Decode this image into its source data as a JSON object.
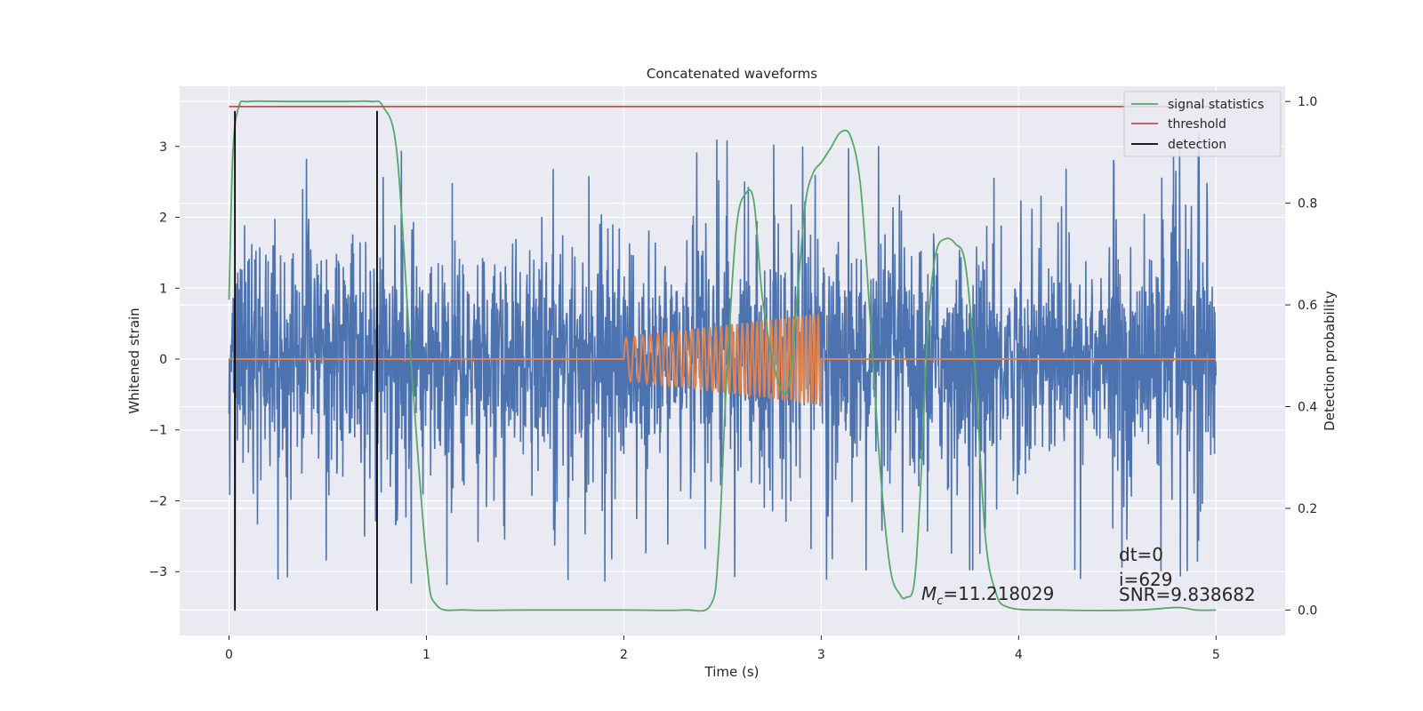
{
  "chart_data": {
    "type": "line",
    "title": "Concatenated waveforms",
    "xlabel": "Time (s)",
    "ylabel": "Whitened strain",
    "y2label": "Detection probability",
    "xlim": [
      -0.25,
      5.35
    ],
    "ylim": [
      -3.9,
      3.85
    ],
    "y2lim": [
      -0.05,
      1.03
    ],
    "xticks": [
      0,
      1,
      2,
      3,
      4,
      5
    ],
    "yticks": [
      -3,
      -2,
      -1,
      0,
      1,
      2,
      3
    ],
    "y2ticks": [
      0.0,
      0.2,
      0.4,
      0.6,
      0.8,
      1.0
    ],
    "grid": true,
    "background": "#eaeaf2",
    "legend_position": "top-right",
    "legend": [
      {
        "label": "signal statistics",
        "color": "#55a868"
      },
      {
        "label": "threshold",
        "color": "#c44e52"
      },
      {
        "label": "detection",
        "color": "#000000"
      }
    ],
    "series": [
      {
        "name": "whitened noise",
        "color": "#4c72b0",
        "axis": "left",
        "x_start": 0,
        "x_end": 5,
        "typical_amplitude": 0.75,
        "spike_range": [
          -3.55,
          3.5
        ]
      },
      {
        "name": "injected chirp",
        "color": "#dd8452",
        "axis": "left",
        "x_start": 0,
        "x_end": 5,
        "chirp_start": 2.0,
        "chirp_end": 3.0,
        "amplitude_start": 0.3,
        "amplitude_end": 0.65
      },
      {
        "name": "signal statistics",
        "color": "#55a868",
        "axis": "right",
        "x": [
          0.0,
          0.02,
          0.05,
          0.1,
          0.3,
          0.6,
          0.72,
          0.78,
          0.85,
          0.92,
          1.0,
          1.05,
          1.2,
          1.5,
          2.0,
          2.3,
          2.44,
          2.48,
          2.52,
          2.57,
          2.62,
          2.66,
          2.7,
          2.75,
          2.8,
          2.84,
          2.88,
          2.92,
          2.96,
          3.0,
          3.05,
          3.1,
          3.15,
          3.2,
          3.25,
          3.3,
          3.35,
          3.4,
          3.43,
          3.47,
          3.5,
          3.54,
          3.58,
          3.63,
          3.68,
          3.73,
          3.78,
          3.83,
          3.88,
          3.95,
          4.2,
          4.6,
          4.8,
          4.9,
          5.0
        ],
        "y": [
          0.61,
          0.9,
          0.99,
          1.0,
          1.0,
          1.0,
          1.0,
          0.99,
          0.9,
          0.5,
          0.1,
          0.01,
          0.0,
          0.0,
          0.0,
          0.0,
          0.01,
          0.12,
          0.45,
          0.75,
          0.82,
          0.8,
          0.62,
          0.5,
          0.43,
          0.45,
          0.62,
          0.8,
          0.86,
          0.88,
          0.91,
          0.94,
          0.93,
          0.83,
          0.56,
          0.27,
          0.08,
          0.03,
          0.025,
          0.05,
          0.22,
          0.55,
          0.7,
          0.73,
          0.72,
          0.68,
          0.47,
          0.15,
          0.04,
          0.005,
          0.0,
          0.0,
          0.005,
          0.0,
          0.0
        ]
      },
      {
        "name": "threshold",
        "color": "#c44e52",
        "axis": "right",
        "x": [
          0,
          5
        ],
        "y": [
          0.99,
          0.99
        ]
      }
    ],
    "detections": [
      0.03,
      0.75
    ],
    "detection_range": [
      -3.55,
      3.5
    ],
    "annotations": {
      "mc_symbol": "M",
      "mc_subscript": "c",
      "mc_value": "=11.218029",
      "dt": "dt=0",
      "i": "i=629",
      "snr": "SNR=9.838682"
    }
  }
}
